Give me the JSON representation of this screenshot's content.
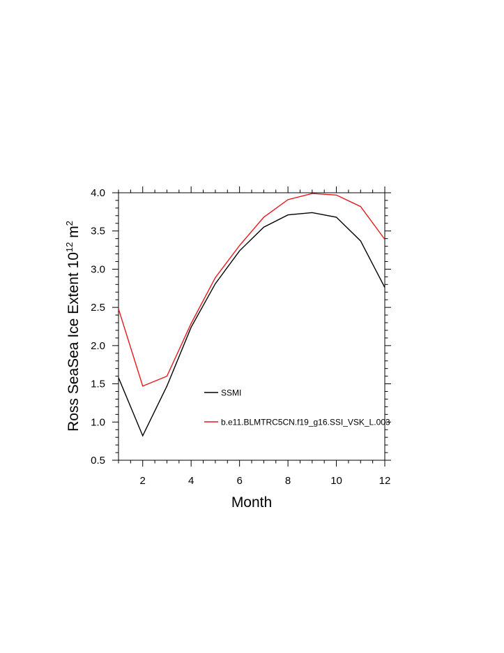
{
  "chart_data": {
    "type": "line",
    "xlabel": "Month",
    "ylabel": {
      "prefix": "Ross SeaSea Ice Extent 10",
      "exp1": "12",
      "mid": " m",
      "exp2": "2"
    },
    "xlim": [
      1,
      12
    ],
    "ylim": [
      0.5,
      4.0
    ],
    "xticks": [
      2,
      4,
      6,
      8,
      10,
      12
    ],
    "xtick_labels": [
      "2",
      "4",
      "6",
      "8",
      "10",
      "12"
    ],
    "yticks": [
      0.5,
      1.0,
      1.5,
      2.0,
      2.5,
      3.0,
      3.5,
      4.0
    ],
    "ytick_labels": [
      "0.5",
      "1.0",
      "1.5",
      "2.0",
      "2.5",
      "3.0",
      "3.5",
      "4.0"
    ],
    "x": [
      1,
      2,
      3,
      4,
      5,
      6,
      7,
      8,
      9,
      10,
      11,
      12
    ],
    "series": [
      {
        "name": "SSMI",
        "color": "#000000",
        "values": [
          1.58,
          0.82,
          1.47,
          2.24,
          2.81,
          3.24,
          3.55,
          3.71,
          3.74,
          3.68,
          3.37,
          2.76
        ]
      },
      {
        "name": "b.e11.BLMTRC5CN.f19_g16.SSI_VSK_L.003",
        "color": "#e8161a",
        "values": [
          2.48,
          1.47,
          1.6,
          2.29,
          2.89,
          3.31,
          3.68,
          3.91,
          3.99,
          3.97,
          3.82,
          3.39
        ]
      }
    ],
    "grid": false,
    "legend": "inside-center"
  }
}
